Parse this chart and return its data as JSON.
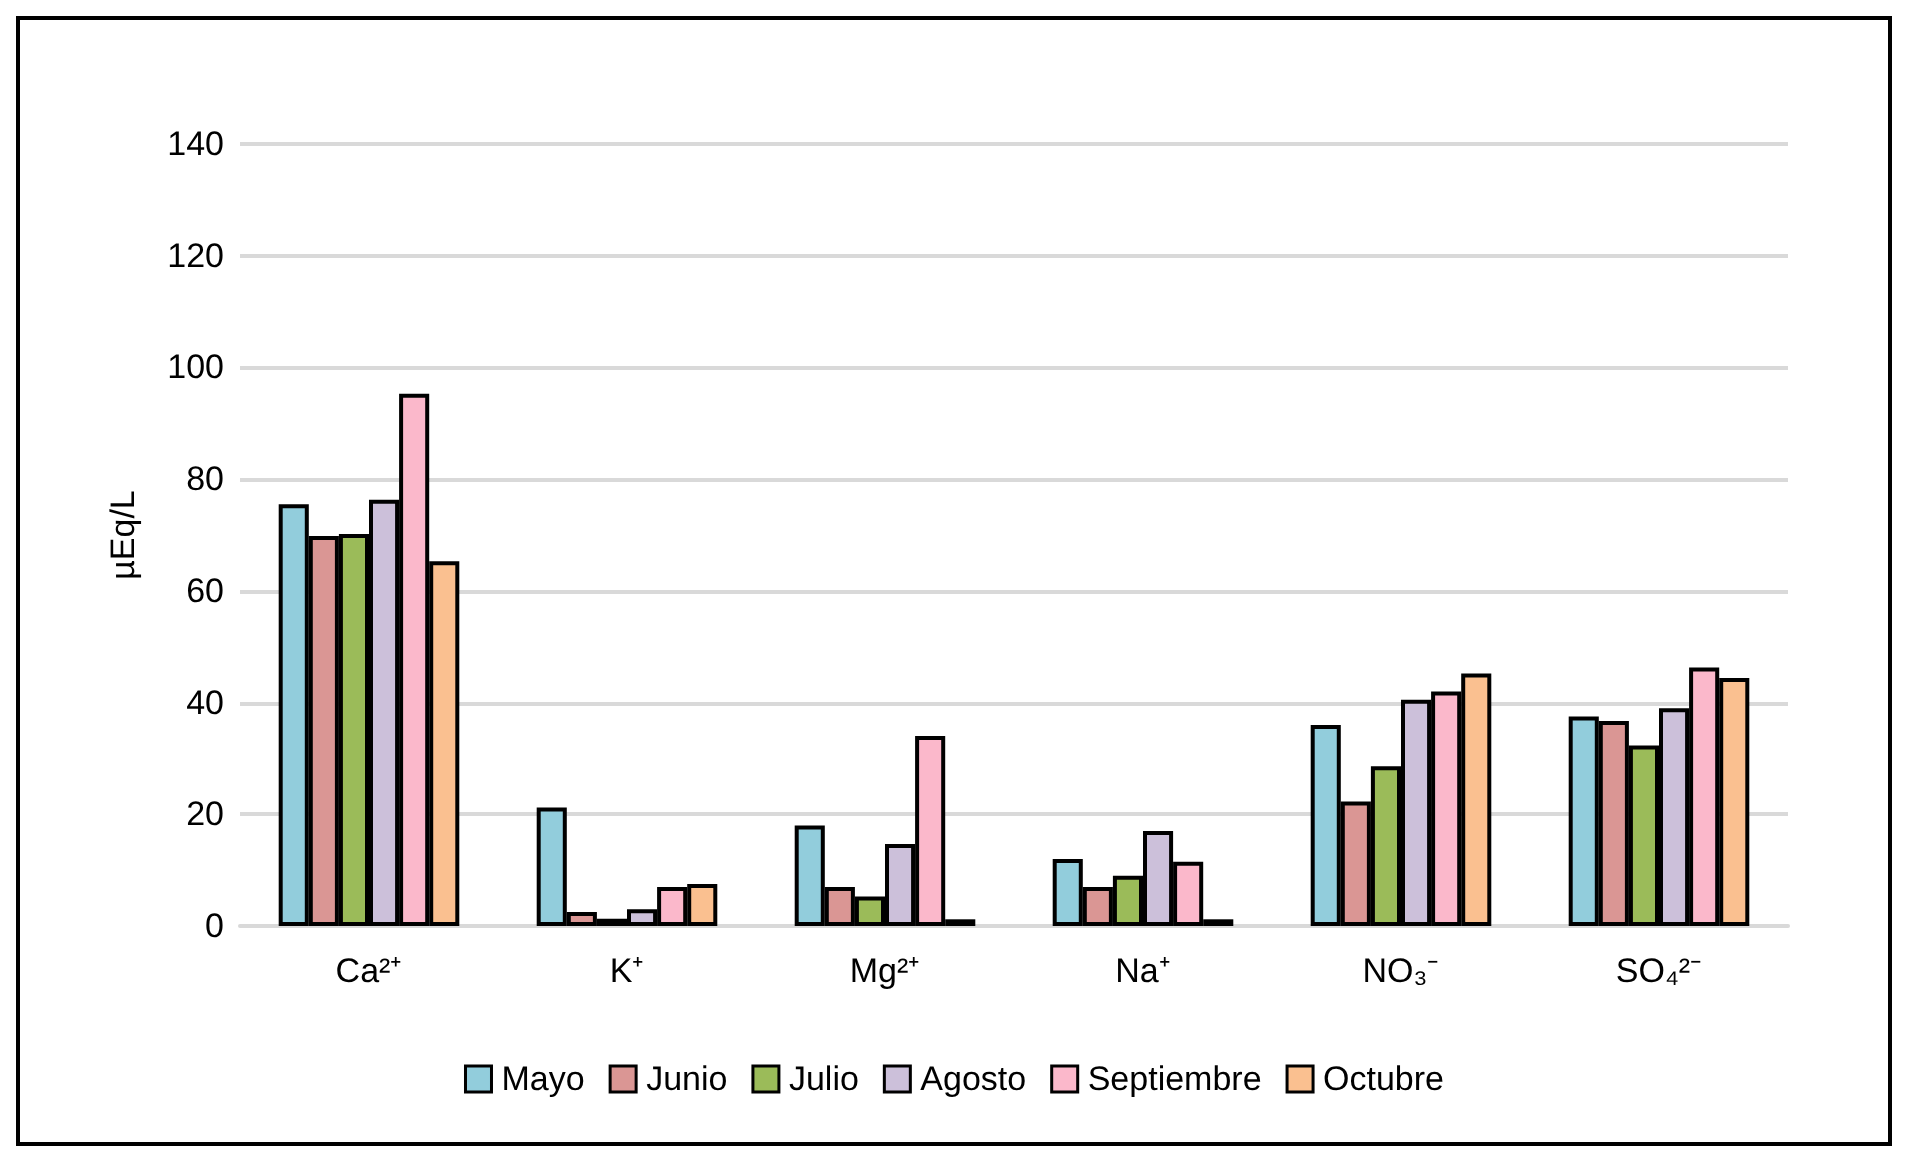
{
  "chart_data": {
    "type": "bar",
    "ylabel": "µEq/L",
    "categories": [
      "Ca²⁺",
      "K⁺",
      "Mg²⁺",
      "Na⁺",
      "NO₃⁻",
      "SO₄²⁻"
    ],
    "series": [
      {
        "name": "Mayo",
        "color": "#92cddc",
        "values": [
          75.5,
          21.2,
          18,
          12,
          36,
          37.5
        ]
      },
      {
        "name": "Junio",
        "color": "#da9694",
        "values": [
          69.8,
          2.5,
          7,
          7,
          22.3,
          36.7
        ]
      },
      {
        "name": "Julio",
        "color": "#9bbb59",
        "values": [
          70.2,
          1.3,
          5.3,
          9,
          28.6,
          32.3
        ]
      },
      {
        "name": "Agosto",
        "color": "#ccc0da",
        "values": [
          76.3,
          3,
          14.7,
          17,
          40.5,
          39
        ]
      },
      {
        "name": "Septiembre",
        "color": "#fbb8cb",
        "values": [
          95.3,
          7,
          34,
          11.5,
          42,
          46.3
        ]
      },
      {
        "name": "Octubre",
        "color": "#fac090",
        "values": [
          65.3,
          7.5,
          1.2,
          1.2,
          45.2,
          44.4
        ]
      }
    ],
    "ylim": [
      0,
      140
    ],
    "yticks": [
      0,
      20,
      40,
      60,
      80,
      100,
      120,
      140
    ],
    "grid": "y",
    "legend": "bottom"
  }
}
